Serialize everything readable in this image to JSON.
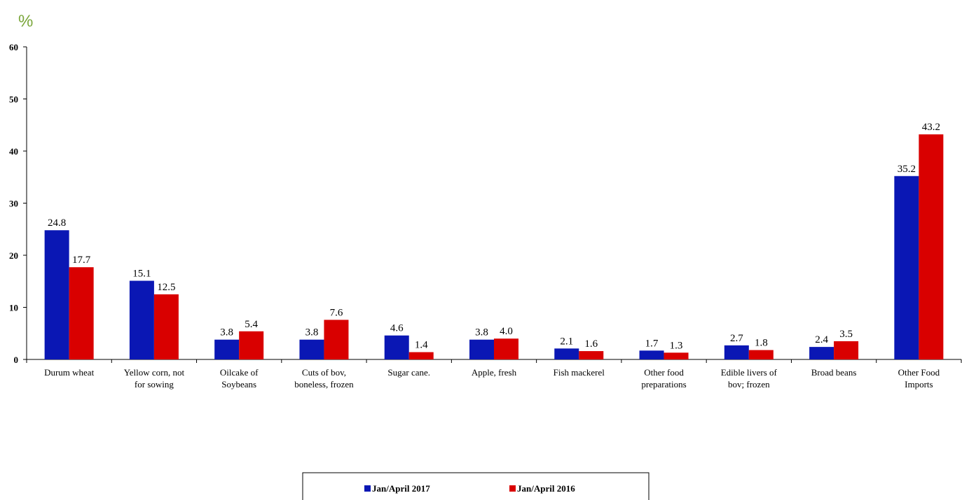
{
  "chart_data": {
    "type": "bar",
    "unit_label": "%",
    "title": "",
    "xlabel": "",
    "ylabel": "",
    "ylim": [
      0,
      60
    ],
    "yticks": [
      0,
      10,
      20,
      30,
      40,
      50,
      60
    ],
    "grid": false,
    "legend_position": "bottom-center",
    "categories": [
      [
        "Durum wheat"
      ],
      [
        "Yellow corn, not",
        "for sowing"
      ],
      [
        "Oilcake of",
        "Soybeans"
      ],
      [
        "Cuts of bov,",
        "boneless, frozen"
      ],
      [
        "Sugar cane."
      ],
      [
        "Apple, fresh"
      ],
      [
        "Fish mackerel"
      ],
      [
        "Other food",
        "preparations"
      ],
      [
        "Edible livers of",
        "bov; frozen"
      ],
      [
        "Broad beans"
      ],
      [
        "Other Food",
        "Imports"
      ]
    ],
    "series": [
      {
        "name": "Jan/April  2017",
        "color": "#0a17b4",
        "values": [
          24.8,
          15.1,
          3.8,
          3.8,
          4.6,
          3.8,
          2.1,
          1.7,
          2.7,
          2.4,
          35.2
        ]
      },
      {
        "name": "Jan/April 2016",
        "color": "#d90000",
        "values": [
          17.7,
          12.5,
          5.4,
          7.6,
          1.4,
          4.0,
          1.6,
          1.3,
          1.8,
          3.5,
          43.2
        ]
      }
    ]
  }
}
